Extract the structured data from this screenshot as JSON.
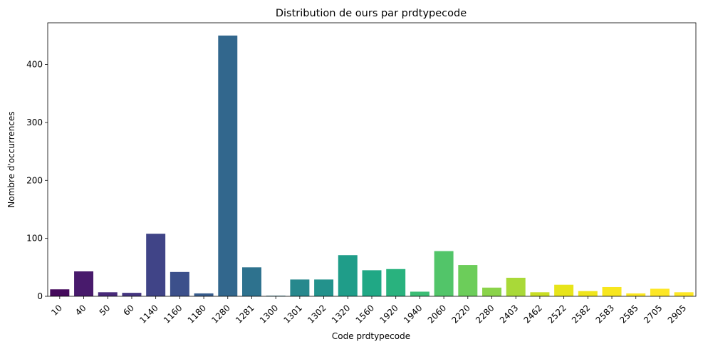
{
  "chart_data": {
    "type": "bar",
    "title": "Distribution de ours par prdtypecode",
    "xlabel": "Code prdtypecode",
    "ylabel": "Nombre d'occurrences",
    "categories": [
      "10",
      "40",
      "50",
      "60",
      "1140",
      "1160",
      "1180",
      "1280",
      "1281",
      "1300",
      "1301",
      "1302",
      "1320",
      "1560",
      "1920",
      "1940",
      "2060",
      "2220",
      "2280",
      "2403",
      "2462",
      "2522",
      "2582",
      "2583",
      "2585",
      "2705",
      "2905"
    ],
    "values": [
      12,
      43,
      7,
      6,
      108,
      42,
      5,
      450,
      50,
      1,
      29,
      29,
      71,
      45,
      47,
      8,
      78,
      54,
      15,
      32,
      7,
      20,
      9,
      16,
      5,
      13,
      7
    ],
    "ylim": [
      0,
      472
    ],
    "yticks": [
      0,
      100,
      200,
      300,
      400
    ],
    "colors": [
      "#450a5c",
      "#481a6c",
      "#482a7a",
      "#453681",
      "#404487",
      "#3c508b",
      "#375c8d",
      "#32678d",
      "#2e728e",
      "#2a7d8e",
      "#27888d",
      "#23928c",
      "#1f9d89",
      "#20a885",
      "#29b27e",
      "#3bbd75",
      "#52c569",
      "#6ccd5a",
      "#8ad34a",
      "#a9d938",
      "#c9de25",
      "#e7e41a",
      "#efe51c",
      "#f7e61e",
      "#fbe723",
      "#fde725",
      "#fde725"
    ],
    "grid": false,
    "legend": "none"
  }
}
